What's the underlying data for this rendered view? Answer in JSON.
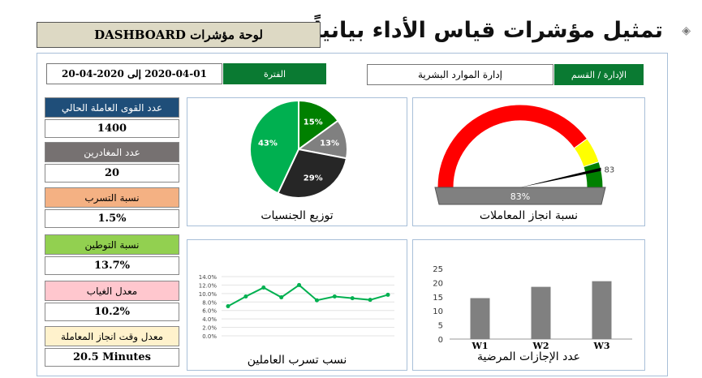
{
  "header": {
    "title": "تمثيل مؤشرات قياس الأداء بيانياً:",
    "dashboard_label": "لوحة مؤشرات DASHBOARD"
  },
  "filters": {
    "department_label": "الإدارة / القسم",
    "department_value": "إدارة الموارد البشرية",
    "period_label": "الفترة",
    "period_value": "2020-04-01 إلى 2020-04-20"
  },
  "kpis": [
    {
      "label": "عدد القوى العاملة الحالي",
      "value": "1400",
      "color": "#1f4e79",
      "text": "#fff"
    },
    {
      "label": "عدد المغادرين",
      "value": "20",
      "color": "#767171",
      "text": "#fff"
    },
    {
      "label": "نسبة التسرب",
      "value": "1.5%",
      "color": "#f4b183",
      "text": "#000"
    },
    {
      "label": "نسبة التوطين",
      "value": "13.7%",
      "color": "#92d050",
      "text": "#000"
    },
    {
      "label": "معدل الغياب",
      "value": "10.2%",
      "color": "#ffc7ce",
      "text": "#000"
    },
    {
      "label": "معدل وقت انجاز المعاملة",
      "value": "20.5 Minutes",
      "color": "#fff2cc",
      "text": "#000"
    }
  ],
  "chart_data": [
    {
      "type": "pie",
      "title": "توزيع الجنسيات",
      "labels": [
        "15%",
        "13%",
        "29%",
        "43%"
      ],
      "values": [
        15,
        13,
        29,
        43
      ],
      "colors": [
        "#008000",
        "#808080",
        "#262626",
        "#00b050"
      ]
    },
    {
      "type": "gauge",
      "title": "نسبة انجاز المعاملات",
      "value": 83,
      "value_label": "83%",
      "needle_label": "83",
      "bands": [
        {
          "to": 80,
          "color": "#ff0000"
        },
        {
          "to": 90,
          "color": "#ffff00"
        },
        {
          "to": 100,
          "color": "#008000"
        }
      ]
    },
    {
      "type": "line",
      "title": "نسب تسرب العاملين",
      "values": [
        7.0,
        9.3,
        11.4,
        9.1,
        12.0,
        8.4,
        9.3,
        8.9,
        8.5,
        9.7
      ],
      "yticks": [
        "14.0%",
        "12.0%",
        "10.0%",
        "8.0%",
        "6.0%",
        "4.0%",
        "2.0%",
        "0.0%"
      ],
      "ylim": [
        0,
        14
      ],
      "color": "#00b050"
    },
    {
      "type": "bar",
      "title": "عدد الإجازات المرضية",
      "categories": [
        "W1",
        "W2",
        "W3"
      ],
      "values": [
        14.5,
        18.5,
        20.5
      ],
      "yticks": [
        "25",
        "20",
        "15",
        "10",
        "5",
        "0"
      ],
      "ylim": [
        0,
        25
      ],
      "color": "#808080"
    }
  ]
}
